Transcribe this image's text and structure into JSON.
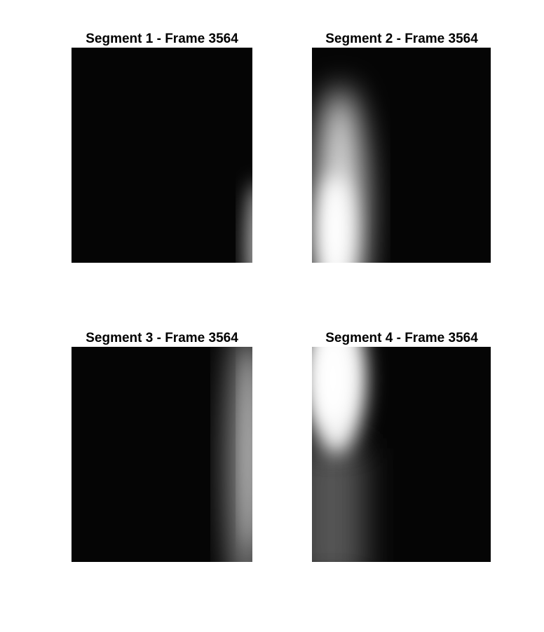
{
  "panels": [
    {
      "title": "Segment 1 - Frame 3564"
    },
    {
      "title": "Segment 2 - Frame 3564"
    },
    {
      "title": "Segment 3 - Frame 3564"
    },
    {
      "title": "Segment 4 - Frame 3564"
    }
  ]
}
